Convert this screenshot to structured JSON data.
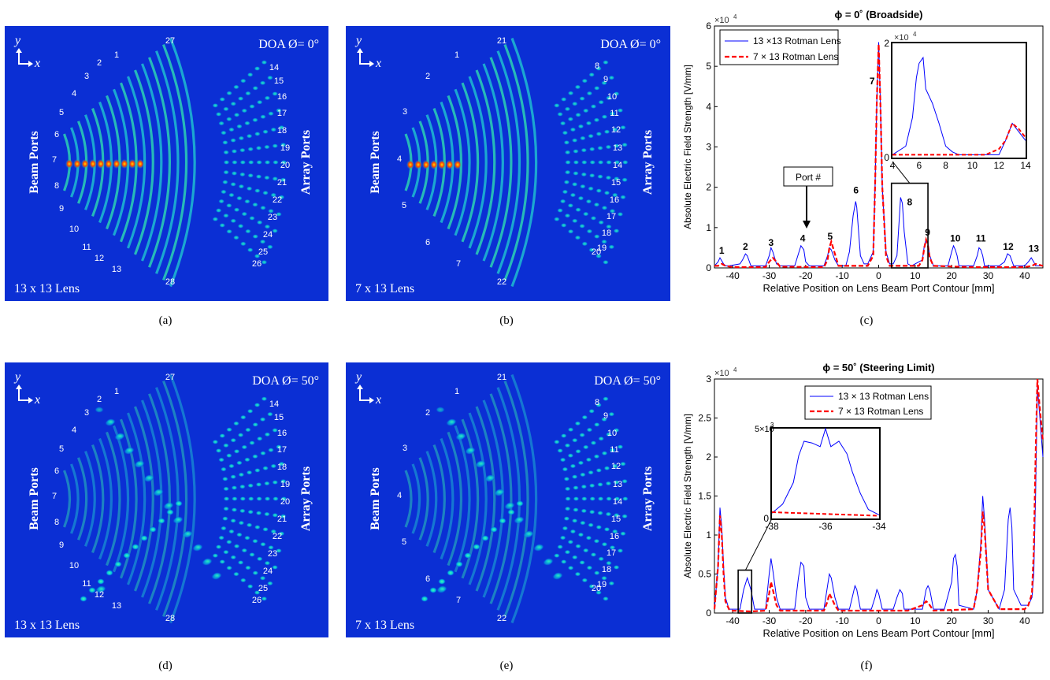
{
  "panels": {
    "a": {
      "caption": "(a)",
      "doa": "DOA Ø= 0°",
      "lens": "13 x 13 Lens",
      "beam": "Beam Ports",
      "array": "Array Ports",
      "y": "y",
      "x": "x",
      "ports": [
        "1",
        "2",
        "3",
        "4",
        "5",
        "6",
        "7",
        "8",
        "9",
        "10",
        "11",
        "12",
        "13",
        "14",
        "15",
        "16",
        "17",
        "18",
        "19",
        "20",
        "21",
        "22",
        "23",
        "24",
        "25",
        "26",
        "27",
        "28"
      ]
    },
    "b": {
      "caption": "(b)",
      "doa": "DOA Ø= 0°",
      "lens": "7 x 13 Lens",
      "beam": "Beam Ports",
      "array": "Array Ports",
      "y": "y",
      "x": "x",
      "ports": [
        "1",
        "2",
        "3",
        "4",
        "5",
        "6",
        "7",
        "8",
        "9",
        "10",
        "11",
        "12",
        "13",
        "14",
        "15",
        "16",
        "17",
        "18",
        "19",
        "20",
        "21",
        "22"
      ]
    },
    "d": {
      "caption": "(d)",
      "doa": "DOA Ø= 50°",
      "lens": "13 x 13 Lens",
      "beam": "Beam Ports",
      "array": "Array Ports",
      "y": "y",
      "x": "x",
      "ports": [
        "1",
        "2",
        "3",
        "4",
        "5",
        "6",
        "7",
        "8",
        "9",
        "10",
        "11",
        "12",
        "13",
        "14",
        "15",
        "16",
        "17",
        "18",
        "19",
        "20",
        "21",
        "22",
        "23",
        "24",
        "25",
        "26",
        "27",
        "28"
      ]
    },
    "e": {
      "caption": "(e)",
      "doa": "DOA Ø= 50°",
      "lens": "7 x 13 Lens",
      "beam": "Beam Ports",
      "array": "Array Ports",
      "y": "y",
      "x": "x",
      "ports": [
        "1",
        "2",
        "3",
        "4",
        "5",
        "6",
        "7",
        "8",
        "9",
        "10",
        "11",
        "12",
        "13",
        "14",
        "15",
        "16",
        "17",
        "18",
        "19",
        "20",
        "21",
        "22"
      ]
    }
  },
  "chart_data": [
    {
      "type": "line",
      "panel": "(c)",
      "title": "ϕ = 0˚ (Broadside)",
      "xlabel": "Relative Position on Lens Beam Port Contour [mm]",
      "ylabel": "Absolute Electric Field Strength [V/mm]",
      "multiplier": "×10",
      "multiplier_exp": "4",
      "xlim": [
        -45,
        45
      ],
      "ylim": [
        0,
        6
      ],
      "xticks": [
        "-40",
        "-30",
        "-20",
        "-10",
        "0",
        "10",
        "20",
        "30",
        "40"
      ],
      "yticks": [
        "0",
        "1",
        "2",
        "3",
        "4",
        "5",
        "6"
      ],
      "legend": [
        "13 ×13 Rotman Lens",
        "7 × 13 Rotman Lens"
      ],
      "series": [
        {
          "name": "13 ×13 Rotman Lens",
          "color": "#0000ff",
          "x": [
            -45,
            -44,
            -43.5,
            -42.5,
            -42,
            -41,
            -38,
            -37.3,
            -36.5,
            -36,
            -35,
            -31,
            -30,
            -29.5,
            -29,
            -28,
            -27,
            -23,
            -22,
            -21.3,
            -20.5,
            -20,
            -19,
            -15,
            -14,
            -13.5,
            -13,
            -12,
            -11,
            -9,
            -8,
            -7,
            -6.3,
            -6,
            -5.5,
            -5,
            -4,
            -3,
            -1.5,
            -1,
            -0.5,
            0,
            0.5,
            1,
            2,
            3,
            4,
            5,
            5.7,
            6,
            6.5,
            7,
            8,
            9,
            12,
            12.5,
            13,
            13.5,
            14,
            15,
            19,
            20,
            20.5,
            21,
            21.5,
            22,
            26,
            27,
            27.5,
            28,
            28.5,
            29,
            33,
            34.5,
            35.3,
            36,
            37,
            40,
            41,
            41.8,
            42.5,
            43,
            45
          ],
          "y": [
            0.05,
            0.15,
            0.25,
            0.1,
            0.05,
            0.05,
            0.1,
            0.2,
            0.35,
            0.3,
            0.05,
            0.05,
            0.3,
            0.5,
            0.4,
            0.1,
            0.05,
            0.05,
            0.35,
            0.55,
            0.45,
            0.15,
            0.05,
            0.05,
            0.3,
            0.5,
            0.45,
            0.2,
            0.05,
            0.05,
            0.4,
            1.3,
            1.65,
            1.5,
            0.9,
            0.3,
            0.1,
            0.1,
            0.4,
            2.0,
            4.2,
            5.6,
            4.0,
            2.0,
            0.4,
            0.1,
            0.1,
            0.3,
            1.3,
            1.75,
            1.6,
            0.9,
            0.1,
            0.05,
            0.2,
            0.55,
            0.7,
            0.6,
            0.3,
            0.05,
            0.05,
            0.4,
            0.55,
            0.45,
            0.3,
            0.05,
            0.05,
            0.3,
            0.5,
            0.45,
            0.3,
            0.05,
            0.05,
            0.15,
            0.35,
            0.3,
            0.05,
            0.05,
            0.15,
            0.25,
            0.15,
            0.05,
            0.05
          ]
        },
        {
          "name": "7 × 13 Rotman Lens",
          "color": "#ff0000",
          "x": [
            -45,
            -44,
            -43,
            -42,
            -40,
            -31,
            -30,
            -29,
            -28,
            -27,
            -15,
            -14,
            -13.5,
            -13,
            -12,
            -11,
            -3,
            -1.5,
            -1,
            -0.5,
            0,
            0.5,
            1,
            2,
            3,
            11,
            12,
            12.5,
            13,
            13.5,
            14,
            15,
            25,
            40,
            42,
            43,
            45
          ],
          "y": [
            0.05,
            0.05,
            0.1,
            0.05,
            0.02,
            0.02,
            0.15,
            0.25,
            0.15,
            0.03,
            0.02,
            0.2,
            0.5,
            0.65,
            0.35,
            0.05,
            0.05,
            0.3,
            2.0,
            4.2,
            5.55,
            4.0,
            2.0,
            0.3,
            0.05,
            0.05,
            0.2,
            0.5,
            0.7,
            0.55,
            0.25,
            0.05,
            0.02,
            0.02,
            0.05,
            0.1,
            0.05
          ]
        }
      ],
      "annotations": [
        "1",
        "2",
        "3",
        "4",
        "5",
        "6",
        "7",
        "8",
        "9",
        "10",
        "11",
        "12",
        "13"
      ],
      "callout": "Port #",
      "inset": {
        "xlim": [
          4,
          14
        ],
        "ylim": [
          0,
          2
        ],
        "xticks": [
          "4",
          "6",
          "8",
          "10",
          "12",
          "14"
        ],
        "yticks": [
          "0",
          "2"
        ],
        "multiplier": "×10",
        "multiplier_exp": "4"
      }
    },
    {
      "type": "line",
      "panel": "(f)",
      "title": "ϕ = 50˚ (Steering Limit)",
      "xlabel": "Relative Position on Lens Beam Port Contour [mm]",
      "ylabel": "Absolute Electric Field Strength [V/mm]",
      "multiplier": "×10",
      "multiplier_exp": "4",
      "xlim": [
        -45,
        45
      ],
      "ylim": [
        0,
        3
      ],
      "xticks": [
        "-40",
        "-30",
        "-20",
        "-10",
        "0",
        "10",
        "20",
        "30",
        "40"
      ],
      "yticks": [
        "0",
        "0.5",
        "1",
        "1.5",
        "2",
        "2.5",
        "3"
      ],
      "legend": [
        "13 × 13 Rotman Lens",
        "7 × 13 Rotman Lens"
      ],
      "series": [
        {
          "name": "13 × 13 Rotman Lens",
          "color": "#0000ff",
          "x": [
            -45,
            -44,
            -43.5,
            -43,
            -42.5,
            -42,
            -41,
            -40,
            -38,
            -37,
            -36,
            -35,
            -34,
            -31,
            -30,
            -29.5,
            -29,
            -28,
            -27,
            -23,
            -22,
            -21.3,
            -20.5,
            -20,
            -19,
            -15,
            -14,
            -13.5,
            -13,
            -12,
            -11,
            -8,
            -7,
            -6.5,
            -6,
            -5,
            -2,
            -1,
            -0.5,
            0,
            1,
            4,
            5,
            5.8,
            6.5,
            7,
            10,
            12,
            13,
            13.5,
            14,
            15,
            18,
            20,
            20.5,
            21,
            21.5,
            22,
            26,
            27,
            28,
            28.5,
            29,
            30,
            33,
            34.5,
            35.5,
            36,
            36.5,
            37,
            39,
            41,
            42,
            42.5,
            43,
            43.5,
            44,
            45
          ],
          "y": [
            0.05,
            0.6,
            1.35,
            1.1,
            0.6,
            0.2,
            0.05,
            0.05,
            0.05,
            0.3,
            0.45,
            0.3,
            0.05,
            0.05,
            0.5,
            0.7,
            0.55,
            0.2,
            0.05,
            0.05,
            0.45,
            0.65,
            0.6,
            0.2,
            0.05,
            0.05,
            0.35,
            0.5,
            0.45,
            0.2,
            0.05,
            0.05,
            0.25,
            0.35,
            0.3,
            0.05,
            0.05,
            0.2,
            0.3,
            0.25,
            0.05,
            0.05,
            0.2,
            0.3,
            0.25,
            0.05,
            0.05,
            0.05,
            0.3,
            0.35,
            0.3,
            0.05,
            0.05,
            0.4,
            0.7,
            0.75,
            0.6,
            0.1,
            0.05,
            0.3,
            0.9,
            1.5,
            1.2,
            0.3,
            0.05,
            0.3,
            1.2,
            1.35,
            1.1,
            0.3,
            0.1,
            0.1,
            0.2,
            0.5,
            1.5,
            2.9,
            2.6,
            2.0
          ]
        },
        {
          "name": "7 × 13 Rotman Lens",
          "color": "#ff0000",
          "x": [
            -45,
            -44,
            -43.5,
            -43,
            -42.5,
            -42,
            -41,
            -40,
            -35,
            -31,
            -30,
            -29.5,
            -29,
            -28,
            -27,
            -15,
            -14,
            -13.5,
            -13,
            -12,
            -11,
            8,
            12,
            13,
            13.5,
            14,
            15,
            26,
            27,
            28,
            28.5,
            29,
            30,
            33,
            40,
            41,
            42,
            42.5,
            43,
            43.5,
            44,
            45
          ],
          "y": [
            0.05,
            0.6,
            1.25,
            1.0,
            0.5,
            0.15,
            0.05,
            0.03,
            0.02,
            0.03,
            0.25,
            0.4,
            0.3,
            0.1,
            0.03,
            0.03,
            0.15,
            0.25,
            0.2,
            0.1,
            0.03,
            0.03,
            0.1,
            0.15,
            0.13,
            0.1,
            0.03,
            0.05,
            0.3,
            0.8,
            1.3,
            1.1,
            0.3,
            0.05,
            0.05,
            0.1,
            0.25,
            0.8,
            2.0,
            3.0,
            2.7,
            2.2
          ]
        }
      ],
      "inset": {
        "xlim": [
          -38,
          -34
        ],
        "ylim": [
          0,
          5
        ],
        "xticks": [
          "-38",
          "-36",
          "-34"
        ],
        "yticks": [
          "0",
          "5×10³"
        ],
        "multiplier": "5×10",
        "multiplier_exp": "3"
      }
    }
  ]
}
